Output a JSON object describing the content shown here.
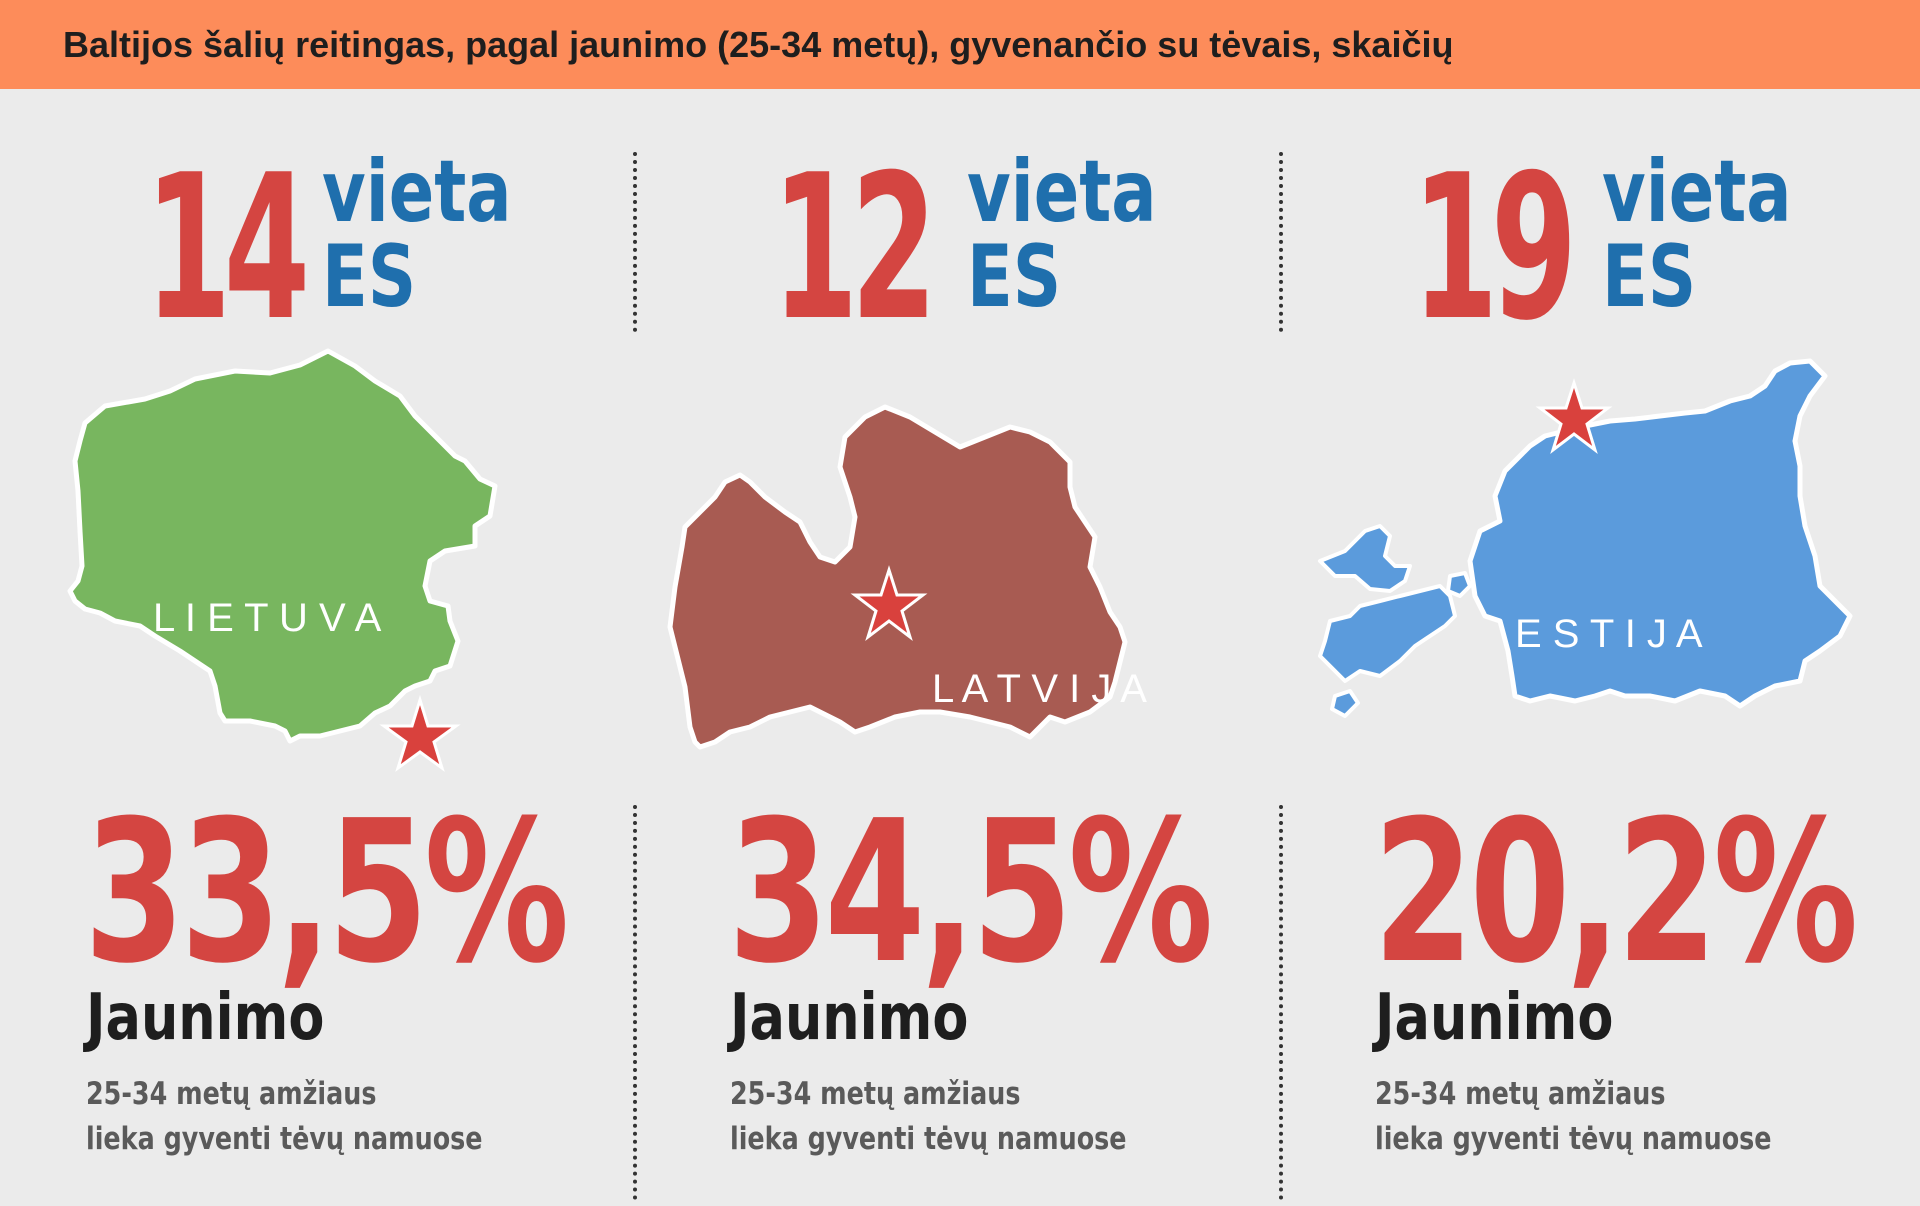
{
  "header": {
    "title": "Baltijos šalių reitingas, pagal jaunimo (25-34 metų), gyvenančio su tėvais, skaičių",
    "background_color": "#fd8c5a"
  },
  "countries": [
    {
      "rank": "14",
      "rank_word": "vieta",
      "rank_scope": "ES",
      "map_label": "L I E T U V A",
      "map_color": "#78b65f",
      "percent": "33,5%",
      "percent_value": 33.5,
      "subject": "Jaunimo",
      "desc_line1": "25-34 metų amžiaus",
      "desc_line2": "lieka gyventi tėvų namuose"
    },
    {
      "rank": "12",
      "rank_word": "vieta",
      "rank_scope": "ES",
      "map_label": "L A T V I J A",
      "map_color": "#a85b52",
      "percent": "34,5%",
      "percent_value": 34.5,
      "subject": "Jaunimo",
      "desc_line1": "25-34 metų amžiaus",
      "desc_line2": "lieka gyventi tėvų namuose"
    },
    {
      "rank": "19",
      "rank_word": "vieta",
      "rank_scope": "ES",
      "map_label": "E S T I J A",
      "map_color": "#5b9bdc",
      "percent": "20,2%",
      "percent_value": 20.2,
      "subject": "Jaunimo",
      "desc_line1": "25-34 metų amžiaus",
      "desc_line2": "lieka gyventi tėvų namuose"
    }
  ],
  "colors": {
    "accent_red": "#d44541",
    "rank_blue": "#1f6fad",
    "star_red": "#d9413d"
  },
  "icons": [
    "capital-star-icon"
  ]
}
